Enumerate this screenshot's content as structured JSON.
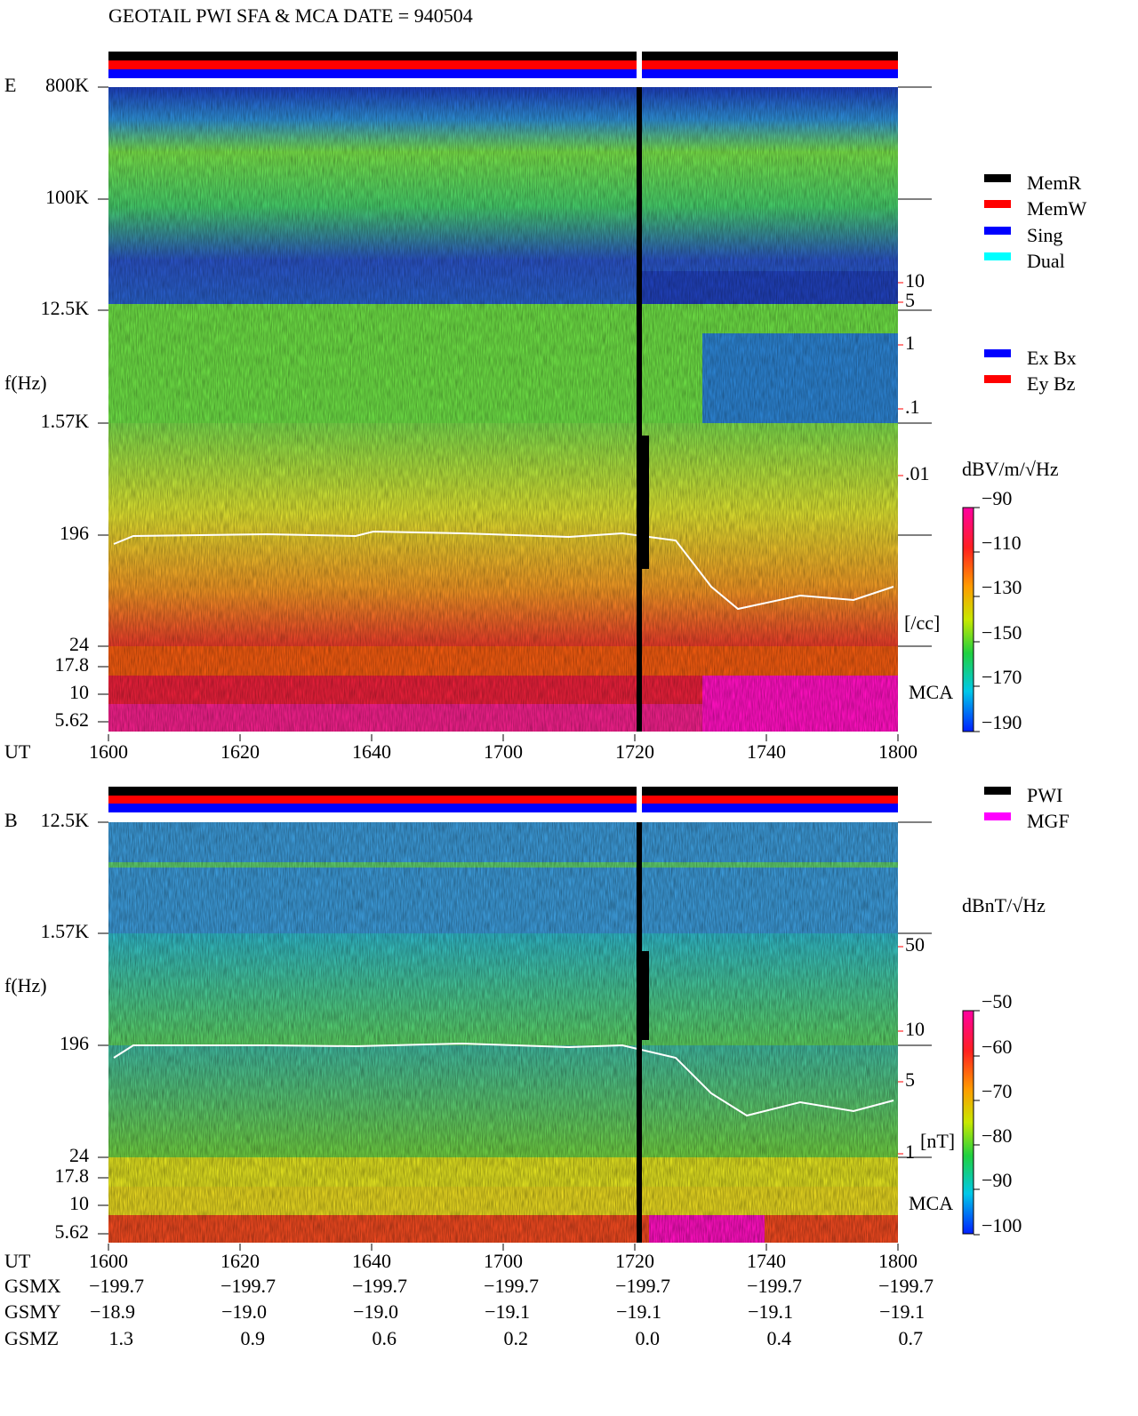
{
  "title": "GEOTAIL  PWI SFA & MCA   DATE = 940504",
  "panels": [
    {
      "id": "E",
      "ylabel": "f(Hz)",
      "yticks": [
        "800K",
        "100K",
        "12.5K",
        "1.57K",
        "196",
        "24",
        "17.8",
        "10",
        "5.62"
      ],
      "right_scale": {
        "ticks": [
          "10",
          "5",
          "1",
          ".1",
          ".01"
        ],
        "unit": "[/cc]"
      },
      "mca": "MCA",
      "xaxis_label": "UT",
      "xticks": [
        "1600",
        "1620",
        "1640",
        "1700",
        "1720",
        "1740",
        "1800"
      ],
      "colorbar": {
        "title": "dBV/m/√Hz",
        "ticks": [
          "−90",
          "−110",
          "−130",
          "−150",
          "−170",
          "−190"
        ]
      }
    },
    {
      "id": "B",
      "ylabel": "f(Hz)",
      "yticks": [
        "12.5K",
        "1.57K",
        "196",
        "24",
        "17.8",
        "10",
        "5.62"
      ],
      "right_scale": {
        "ticks": [
          "50",
          "10",
          "5",
          "1"
        ],
        "unit": "[nT]"
      },
      "mca": "MCA",
      "xaxis_label": "UT",
      "xticks": [
        "1600",
        "1620",
        "1640",
        "1700",
        "1720",
        "1740",
        "1800"
      ],
      "colorbar": {
        "title": "dBnT/√Hz",
        "ticks": [
          "−50",
          "−60",
          "−70",
          "−80",
          "−90",
          "−100"
        ]
      }
    }
  ],
  "legends": {
    "modes": [
      {
        "label": "MemR",
        "color": "#000000"
      },
      {
        "label": "MemW",
        "color": "#ff0000"
      },
      {
        "label": "Sing",
        "color": "#0000ff"
      },
      {
        "label": "Dual",
        "color": "#00ffff"
      }
    ],
    "components": [
      {
        "label": "Ex Bx",
        "color": "#0000ff"
      },
      {
        "label": "Ey Bz",
        "color": "#ff0000"
      }
    ],
    "sources": [
      {
        "label": "PWI",
        "color": "#000000"
      },
      {
        "label": "MGF",
        "color": "#ff00ff"
      }
    ]
  },
  "orbit": {
    "rows": [
      {
        "label": "GSMX",
        "values": [
          "−199.7",
          "−199.7",
          "−199.7",
          "−199.7",
          "−199.7",
          "−199.7",
          "−199.7"
        ]
      },
      {
        "label": "GSMY",
        "values": [
          "−18.9",
          "−19.0",
          "−19.0",
          "−19.1",
          "−19.1",
          "−19.1",
          "−19.1"
        ]
      },
      {
        "label": "GSMZ",
        "values": [
          "1.3",
          "0.9",
          "0.6",
          "0.2",
          "0.0",
          "0.4",
          "0.7"
        ]
      }
    ]
  }
}
